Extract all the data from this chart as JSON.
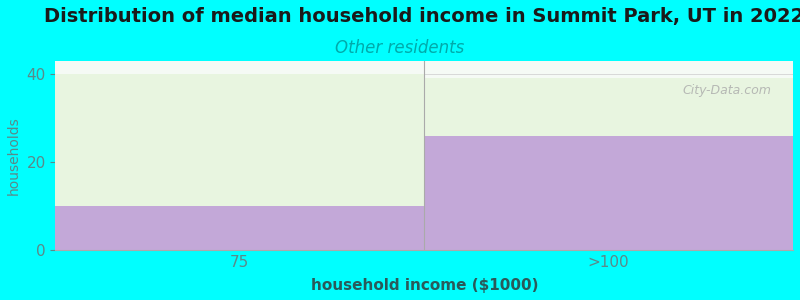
{
  "title": "Distribution of median household income in Summit Park, UT in 2022",
  "subtitle": "Other residents",
  "xlabel": "household income ($1000)",
  "ylabel": "households",
  "categories": [
    "75",
    ">100"
  ],
  "purple_values": [
    10,
    26
  ],
  "green_values": [
    30,
    13
  ],
  "purple_color": "#C3A8D8",
  "green_color": "#E8F5E0",
  "background_color": "#00FFFF",
  "plot_bg_color": "#F5FAF5",
  "title_fontsize": 14,
  "subtitle_fontsize": 12,
  "subtitle_color": "#00AAAA",
  "ylabel_color": "#5A8A8A",
  "xlabel_color": "#2A5A5A",
  "tick_color": "#5A8A8A",
  "ylim": [
    0,
    43
  ],
  "yticks": [
    0,
    20,
    40
  ],
  "watermark": "City-Data.com"
}
